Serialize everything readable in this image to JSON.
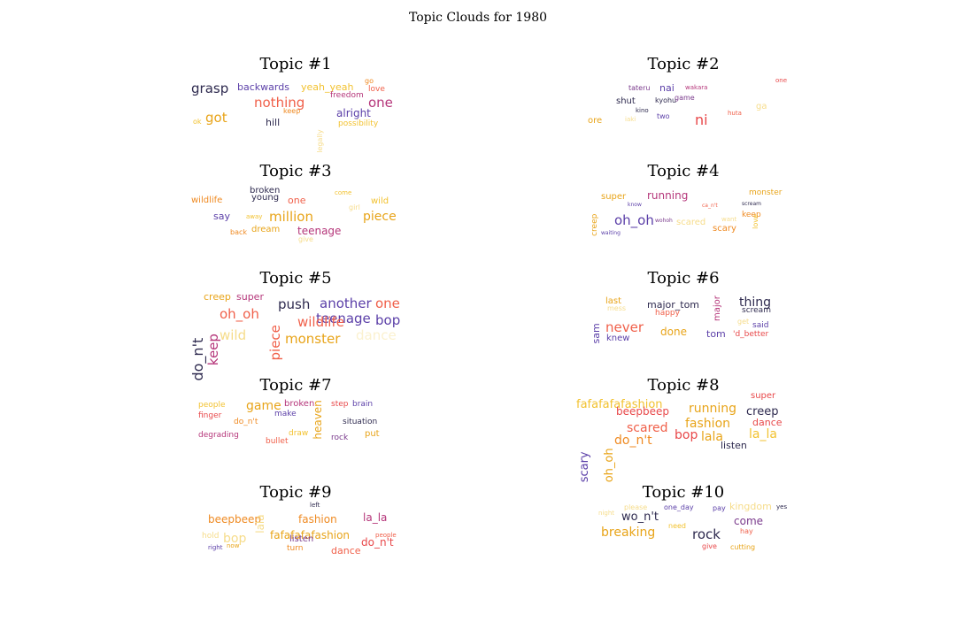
{
  "figure": {
    "title": "Topic Clouds for 1980"
  },
  "palette": {
    "dark": "#2e2a4f",
    "indigo": "#5b3fa8",
    "purple": "#7a3a8c",
    "magenta": "#b5367a",
    "red": "#e8484a",
    "coral": "#f0604a",
    "orange": "#ef8a22",
    "amber": "#e8a419",
    "gold": "#f2c230",
    "pale": "#f6dc8a"
  },
  "topics": [
    {
      "title": "Topic #1",
      "words": [
        {
          "text": "grasp",
          "size": 15,
          "color": "#2e2a4f"
        },
        {
          "text": "backwards",
          "size": 11,
          "color": "#5b3fa8"
        },
        {
          "text": "yeah_yeah",
          "size": 11,
          "color": "#f2c230"
        },
        {
          "text": "go",
          "size": 8,
          "color": "#ef8a22"
        },
        {
          "text": "love",
          "size": 9,
          "color": "#f0604a"
        },
        {
          "text": "freedom",
          "size": 9,
          "color": "#b5367a"
        },
        {
          "text": "nothing",
          "size": 15,
          "color": "#f0604a"
        },
        {
          "text": "one",
          "size": 15,
          "color": "#b5367a"
        },
        {
          "text": "keep",
          "size": 8,
          "color": "#ef8a22"
        },
        {
          "text": "legally",
          "size": 8,
          "color": "#f6dc8a",
          "rot": -90
        },
        {
          "text": "alright",
          "size": 12,
          "color": "#5b3fa8"
        },
        {
          "text": "got",
          "size": 15,
          "color": "#e8a419"
        },
        {
          "text": "ok",
          "size": 8,
          "color": "#f2c230"
        },
        {
          "text": "hill",
          "size": 11,
          "color": "#2e2a4f"
        },
        {
          "text": "possibility",
          "size": 9,
          "color": "#f2c230"
        }
      ]
    },
    {
      "title": "Topic #2",
      "words": [
        {
          "text": "one",
          "size": 7,
          "color": "#e8484a"
        },
        {
          "text": "tateru",
          "size": 8,
          "color": "#7a3a8c"
        },
        {
          "text": "nai",
          "size": 11,
          "color": "#5b3fa8"
        },
        {
          "text": "wakara",
          "size": 7,
          "color": "#b5367a"
        },
        {
          "text": "shut",
          "size": 10,
          "color": "#2e2a4f"
        },
        {
          "text": "kino",
          "size": 7,
          "color": "#2e2a4f"
        },
        {
          "text": "kyohu",
          "size": 8,
          "color": "#2e2a4f"
        },
        {
          "text": "game",
          "size": 8,
          "color": "#7a3a8c"
        },
        {
          "text": "ga",
          "size": 10,
          "color": "#f6dc8a"
        },
        {
          "text": "huta",
          "size": 7,
          "color": "#f0604a"
        },
        {
          "text": "two",
          "size": 8,
          "color": "#5b3fa8"
        },
        {
          "text": "ore",
          "size": 10,
          "color": "#e8a419"
        },
        {
          "text": "iaki",
          "size": 7,
          "color": "#f6dc8a"
        },
        {
          "text": "ni",
          "size": 16,
          "color": "#e8484a"
        }
      ]
    },
    {
      "title": "Topic #3",
      "words": [
        {
          "text": "broken",
          "size": 10,
          "color": "#2e2a4f"
        },
        {
          "text": "young",
          "size": 10,
          "color": "#2e2a4f"
        },
        {
          "text": "come",
          "size": 7,
          "color": "#f2c230"
        },
        {
          "text": "wildlife",
          "size": 10,
          "color": "#ef8a22"
        },
        {
          "text": "one",
          "size": 11,
          "color": "#f0604a"
        },
        {
          "text": "wild",
          "size": 10,
          "color": "#f2c230"
        },
        {
          "text": "say",
          "size": 11,
          "color": "#5b3fa8"
        },
        {
          "text": "away",
          "size": 7,
          "color": "#f2c230"
        },
        {
          "text": "million",
          "size": 15,
          "color": "#e8a419"
        },
        {
          "text": "girl",
          "size": 8,
          "color": "#f6dc8a"
        },
        {
          "text": "piece",
          "size": 14,
          "color": "#e8a419"
        },
        {
          "text": "back",
          "size": 8,
          "color": "#ef8a22"
        },
        {
          "text": "dream",
          "size": 10,
          "color": "#e8a419"
        },
        {
          "text": "teenage",
          "size": 12,
          "color": "#b5367a"
        },
        {
          "text": "give",
          "size": 8,
          "color": "#f6dc8a"
        }
      ]
    },
    {
      "title": "Topic #4",
      "words": [
        {
          "text": "super",
          "size": 10,
          "color": "#e8a419"
        },
        {
          "text": "running",
          "size": 12,
          "color": "#b5367a"
        },
        {
          "text": "monster",
          "size": 9,
          "color": "#e8a419"
        },
        {
          "text": "know",
          "size": 6,
          "color": "#5b3fa8"
        },
        {
          "text": "scream",
          "size": 6,
          "color": "#2e2a4f"
        },
        {
          "text": "ca_n't",
          "size": 6,
          "color": "#f0604a"
        },
        {
          "text": "keep",
          "size": 9,
          "color": "#ef8a22"
        },
        {
          "text": "creep",
          "size": 9,
          "color": "#e8a419",
          "rot": -90
        },
        {
          "text": "oh_oh",
          "size": 15,
          "color": "#5b3fa8"
        },
        {
          "text": "wohoh",
          "size": 6,
          "color": "#7a3a8c"
        },
        {
          "text": "scared",
          "size": 10,
          "color": "#f6dc8a"
        },
        {
          "text": "want",
          "size": 7,
          "color": "#f6dc8a"
        },
        {
          "text": "scary",
          "size": 10,
          "color": "#ef8a22"
        },
        {
          "text": "love",
          "size": 8,
          "color": "#f2c230",
          "rot": -90
        },
        {
          "text": "waiting",
          "size": 6,
          "color": "#5b3fa8"
        }
      ]
    },
    {
      "title": "Topic #5",
      "words": [
        {
          "text": "creep",
          "size": 11,
          "color": "#e8a419"
        },
        {
          "text": "super",
          "size": 11,
          "color": "#b5367a"
        },
        {
          "text": "do_n't",
          "size": 16,
          "color": "#2e2a4f",
          "rot": -90
        },
        {
          "text": "keep",
          "size": 15,
          "color": "#b5367a",
          "rot": -90
        },
        {
          "text": "push",
          "size": 15,
          "color": "#2e2a4f"
        },
        {
          "text": "another",
          "size": 15,
          "color": "#5b3fa8"
        },
        {
          "text": "one",
          "size": 15,
          "color": "#f0604a"
        },
        {
          "text": "oh_oh",
          "size": 15,
          "color": "#f0604a"
        },
        {
          "text": "teenage",
          "size": 15,
          "color": "#5b3fa8"
        },
        {
          "text": "piece",
          "size": 15,
          "color": "#f0604a",
          "rot": -90
        },
        {
          "text": "wildlife",
          "size": 15,
          "color": "#f0604a"
        },
        {
          "text": "bop",
          "size": 15,
          "color": "#5b3fa8"
        },
        {
          "text": "wild",
          "size": 15,
          "color": "#f6dc8a"
        },
        {
          "text": "monster",
          "size": 15,
          "color": "#e8a419"
        },
        {
          "text": "dance",
          "size": 15,
          "color": "#fbf1cf"
        }
      ]
    },
    {
      "title": "Topic #6",
      "words": [
        {
          "text": "last",
          "size": 10,
          "color": "#e8a419"
        },
        {
          "text": "mess",
          "size": 8,
          "color": "#f6dc8a"
        },
        {
          "text": "major_tom",
          "size": 11,
          "color": "#2e2a4f"
        },
        {
          "text": "major",
          "size": 10,
          "color": "#b5367a",
          "rot": -90
        },
        {
          "text": "thing",
          "size": 14,
          "color": "#2e2a4f"
        },
        {
          "text": "happy",
          "size": 9,
          "color": "#f0604a"
        },
        {
          "text": "scream",
          "size": 9,
          "color": "#2e2a4f"
        },
        {
          "text": "sam",
          "size": 11,
          "color": "#5b3fa8",
          "rot": -90
        },
        {
          "text": "never",
          "size": 15,
          "color": "#f0604a"
        },
        {
          "text": "done",
          "size": 12,
          "color": "#e8a419"
        },
        {
          "text": "get",
          "size": 8,
          "color": "#f6dc8a"
        },
        {
          "text": "said",
          "size": 9,
          "color": "#5b3fa8"
        },
        {
          "text": "tom",
          "size": 11,
          "color": "#5b3fa8"
        },
        {
          "text": "'d_better",
          "size": 9,
          "color": "#e8484a"
        },
        {
          "text": "knew",
          "size": 10,
          "color": "#5b3fa8"
        }
      ]
    },
    {
      "title": "Topic #7",
      "words": [
        {
          "text": "people",
          "size": 9,
          "color": "#f2c230"
        },
        {
          "text": "game",
          "size": 14,
          "color": "#e8a419"
        },
        {
          "text": "broken",
          "size": 10,
          "color": "#b5367a"
        },
        {
          "text": "step",
          "size": 9,
          "color": "#e8484a"
        },
        {
          "text": "brain",
          "size": 9,
          "color": "#5b3fa8"
        },
        {
          "text": "finger",
          "size": 9,
          "color": "#e8484a"
        },
        {
          "text": "make",
          "size": 9,
          "color": "#5b3fa8"
        },
        {
          "text": "heaven",
          "size": 12,
          "color": "#e8a419",
          "rot": -90
        },
        {
          "text": "do_n't",
          "size": 9,
          "color": "#ef8a22"
        },
        {
          "text": "situation",
          "size": 9,
          "color": "#2e2a4f"
        },
        {
          "text": "degrading",
          "size": 9,
          "color": "#b5367a"
        },
        {
          "text": "draw",
          "size": 9,
          "color": "#f2c230"
        },
        {
          "text": "put",
          "size": 10,
          "color": "#e8a419"
        },
        {
          "text": "bullet",
          "size": 9,
          "color": "#f0604a"
        },
        {
          "text": "rock",
          "size": 9,
          "color": "#7a3a8c"
        }
      ]
    },
    {
      "title": "Topic #8",
      "words": [
        {
          "text": "fafafafafashion",
          "size": 13,
          "color": "#f2c230"
        },
        {
          "text": "super",
          "size": 10,
          "color": "#e8484a"
        },
        {
          "text": "beepbeep",
          "size": 12,
          "color": "#e8484a"
        },
        {
          "text": "running",
          "size": 14,
          "color": "#e8a419"
        },
        {
          "text": "creep",
          "size": 13,
          "color": "#2e2a4f"
        },
        {
          "text": "scary",
          "size": 13,
          "color": "#5b3fa8",
          "rot": -90
        },
        {
          "text": "oh_oh",
          "size": 13,
          "color": "#e8a419",
          "rot": -90
        },
        {
          "text": "fashion",
          "size": 14,
          "color": "#e8a419"
        },
        {
          "text": "dance",
          "size": 11,
          "color": "#e8484a"
        },
        {
          "text": "scared",
          "size": 14,
          "color": "#f0604a"
        },
        {
          "text": "la_la",
          "size": 14,
          "color": "#f2c230"
        },
        {
          "text": "bop",
          "size": 14,
          "color": "#e8484a"
        },
        {
          "text": "lala",
          "size": 14,
          "color": "#e8a419"
        },
        {
          "text": "do_n't",
          "size": 14,
          "color": "#ef8a22"
        },
        {
          "text": "listen",
          "size": 11,
          "color": "#2e2a4f"
        }
      ]
    },
    {
      "title": "Topic #9",
      "words": [
        {
          "text": "left",
          "size": 7,
          "color": "#2e2a4f"
        },
        {
          "text": "beepbeep",
          "size": 12,
          "color": "#ef8a22"
        },
        {
          "text": "fashion",
          "size": 12,
          "color": "#ef8a22"
        },
        {
          "text": "la_la",
          "size": 12,
          "color": "#b5367a"
        },
        {
          "text": "lala",
          "size": 12,
          "color": "#f6dc8a",
          "rot": -90
        },
        {
          "text": "fafafafafashion",
          "size": 12,
          "color": "#e8a419"
        },
        {
          "text": "hold",
          "size": 9,
          "color": "#f6dc8a"
        },
        {
          "text": "bop",
          "size": 14,
          "color": "#f6dc8a"
        },
        {
          "text": "people",
          "size": 7,
          "color": "#f0604a"
        },
        {
          "text": "listen",
          "size": 10,
          "color": "#7a3a8c"
        },
        {
          "text": "do_n't",
          "size": 12,
          "color": "#e8484a"
        },
        {
          "text": "now",
          "size": 7,
          "color": "#e8a419"
        },
        {
          "text": "right",
          "size": 7,
          "color": "#5b3fa8"
        },
        {
          "text": "turn",
          "size": 9,
          "color": "#ef8a22"
        },
        {
          "text": "dance",
          "size": 11,
          "color": "#f0604a"
        }
      ]
    },
    {
      "title": "Topic #10",
      "words": [
        {
          "text": "please",
          "size": 8,
          "color": "#f6dc8a"
        },
        {
          "text": "one_day",
          "size": 8,
          "color": "#5b3fa8"
        },
        {
          "text": "pay",
          "size": 8,
          "color": "#5b3fa8"
        },
        {
          "text": "kingdom",
          "size": 11,
          "color": "#f6dc8a"
        },
        {
          "text": "yes",
          "size": 7,
          "color": "#2e2a4f"
        },
        {
          "text": "night",
          "size": 7,
          "color": "#f6dc8a"
        },
        {
          "text": "wo_n't",
          "size": 13,
          "color": "#2e2a4f"
        },
        {
          "text": "come",
          "size": 12,
          "color": "#7a3a8c"
        },
        {
          "text": "breaking",
          "size": 14,
          "color": "#e8a419"
        },
        {
          "text": "need",
          "size": 8,
          "color": "#f2c230"
        },
        {
          "text": "rock",
          "size": 15,
          "color": "#2e2a4f"
        },
        {
          "text": "hay",
          "size": 8,
          "color": "#f0604a"
        },
        {
          "text": "give",
          "size": 8,
          "color": "#e8484a"
        },
        {
          "text": "cutting",
          "size": 8,
          "color": "#e8a419"
        }
      ]
    }
  ]
}
